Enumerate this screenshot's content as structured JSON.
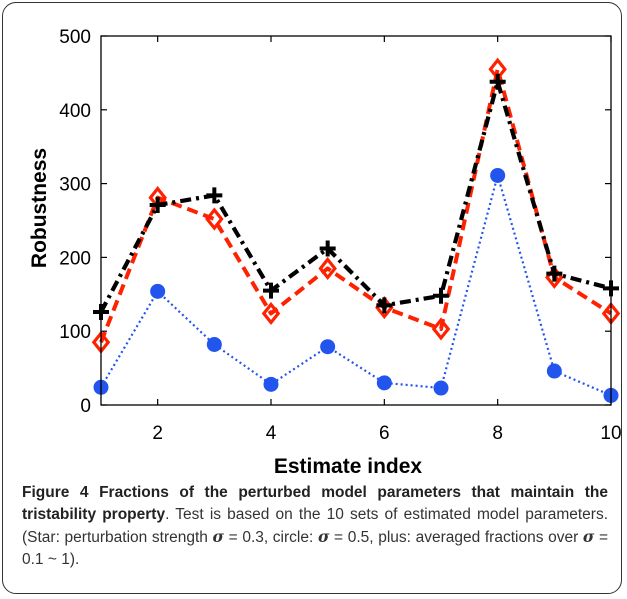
{
  "chart_data": {
    "type": "line",
    "title": "",
    "xlabel": "Estimate index",
    "ylabel": "Robustness",
    "xlim": [
      1,
      10
    ],
    "ylim": [
      0,
      500
    ],
    "xticks": [
      2,
      4,
      6,
      8,
      10
    ],
    "yticks": [
      0,
      100,
      200,
      300,
      400,
      500
    ],
    "grid": false,
    "x": [
      1,
      2,
      3,
      4,
      5,
      6,
      7,
      8,
      9,
      10
    ],
    "series": [
      {
        "name": "",
        "marker": "diamond",
        "line_style": "dashed",
        "color": "#ff2200",
        "values": [
          85,
          281,
          252,
          124,
          185,
          132,
          103,
          455,
          173,
          124
        ]
      },
      {
        "name": "",
        "marker": "circle",
        "line_style": "dotted",
        "color": "#2255ee",
        "values": [
          24,
          154,
          82,
          28,
          79,
          30,
          23,
          311,
          46,
          13
        ]
      },
      {
        "name": "",
        "marker": "plus",
        "line_style": "dashdot",
        "color": "#000000",
        "values": [
          126,
          271,
          284,
          155,
          212,
          135,
          148,
          438,
          178,
          158
        ]
      }
    ]
  },
  "caption": {
    "label": "Figure 4",
    "title": "Fractions of the perturbed model parameters that maintain the tristability property",
    "text_1": ". Test is based on the 10 sets of estimated model parameters. (Star: perturbation strength ",
    "sigma": "σ",
    "text_2": " = 0.3, circle: ",
    "text_3": " = 0.5, plus: averaged fractions over ",
    "text_4": " = 0.1 ~ 1)."
  }
}
